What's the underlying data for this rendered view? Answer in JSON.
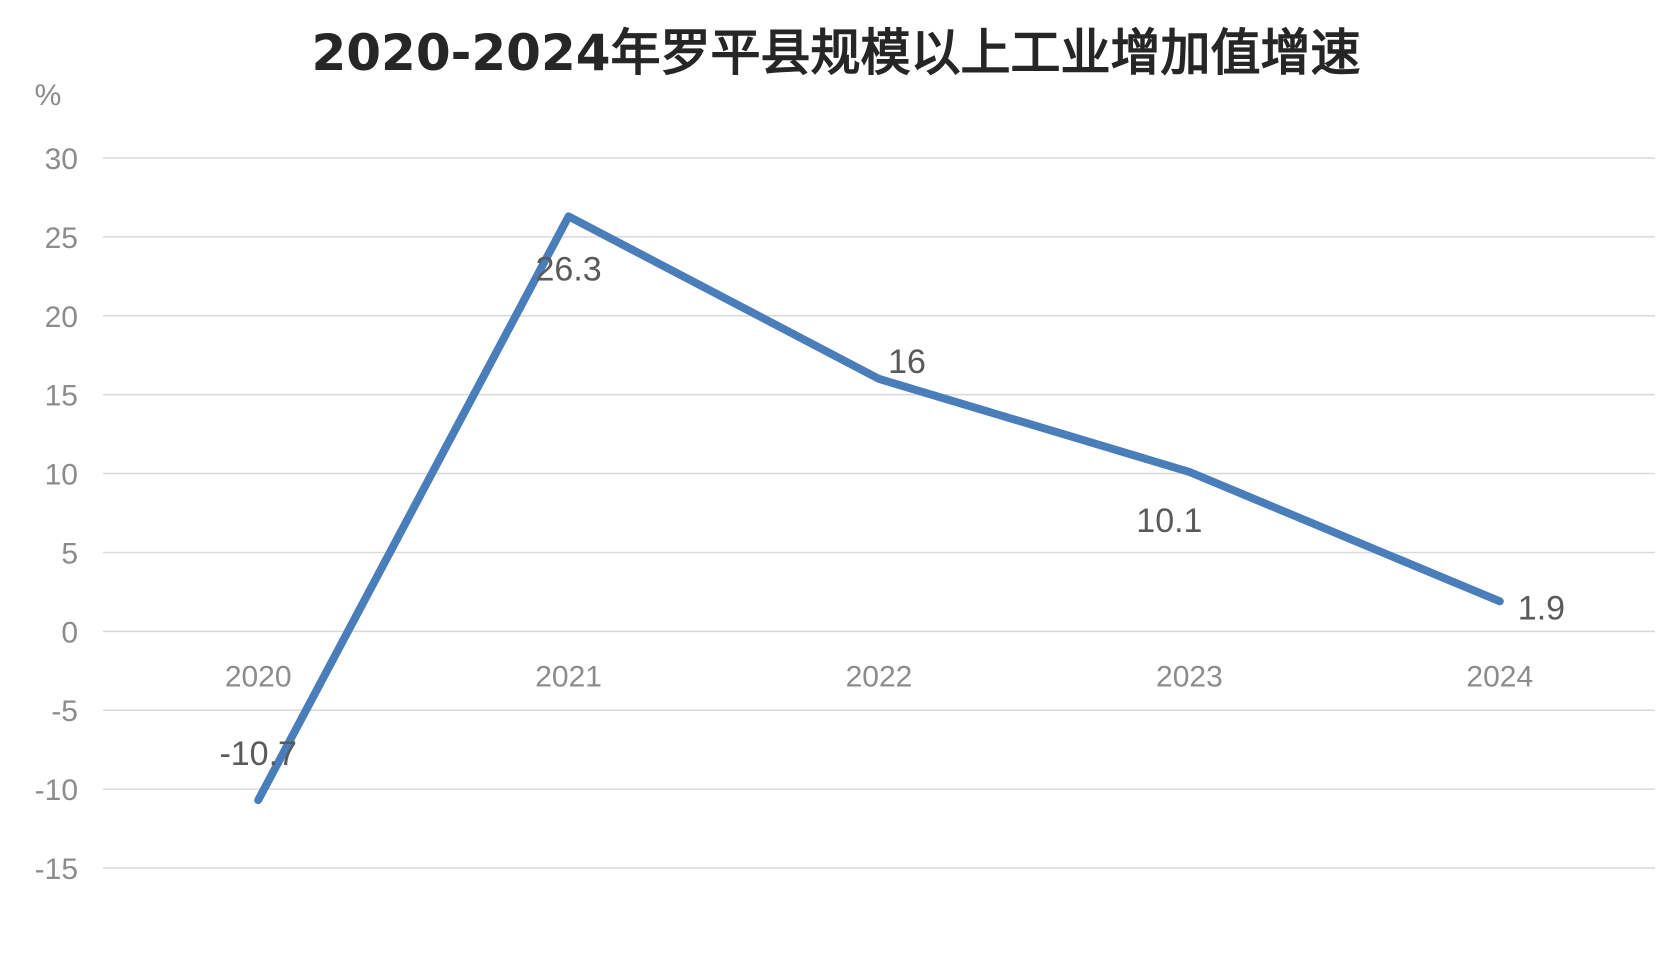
{
  "chart_data": {
    "type": "line",
    "title": "2020-2024年罗平县规模以上工业增加值增速",
    "ylabel": "%",
    "xlabel": "",
    "categories": [
      "2020",
      "2021",
      "2022",
      "2023",
      "2024"
    ],
    "series": [
      {
        "values": [
          -10.7,
          26.3,
          16,
          10.1,
          1.9
        ],
        "data_labels": [
          "-10.7",
          "26.3",
          "16",
          "10.1",
          "1.9"
        ],
        "color": "#4a7ebb"
      }
    ],
    "ylim": [
      -15,
      30
    ],
    "yticks": [
      "30",
      "25",
      "20",
      "15",
      "10",
      "5",
      "0",
      "-5",
      "-10",
      "-15"
    ],
    "grid": true,
    "legend": "none",
    "colors": {
      "line": "#4a7ebb",
      "gridline": "#d9d9d9",
      "tick_text": "#8c8c8c",
      "title_text": "#262626",
      "label_text": "#5a5a5a"
    }
  }
}
